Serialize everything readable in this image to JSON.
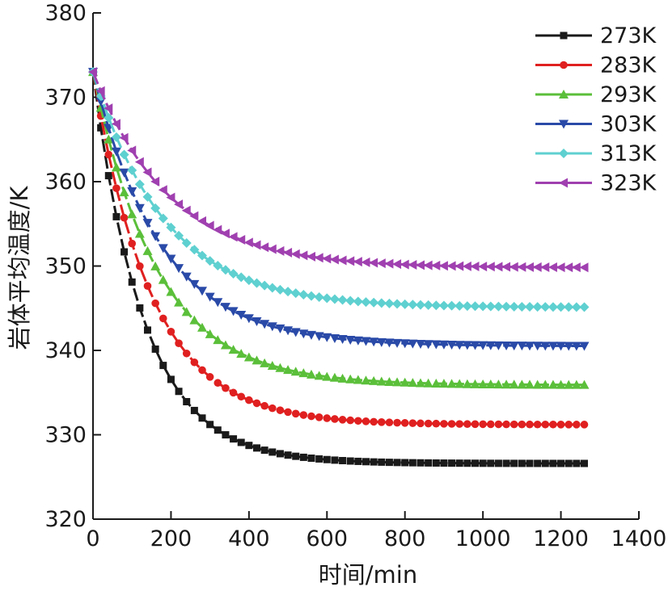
{
  "chart_data": {
    "type": "line",
    "xlabel": "时间/min",
    "ylabel": "岩体平均温度/K",
    "xlim": [
      0,
      1400
    ],
    "ylim": [
      320,
      380
    ],
    "xticks": [
      "0",
      "200",
      "400",
      "600",
      "800",
      "1000",
      "1200",
      "1400"
    ],
    "yticks": [
      "320",
      "330",
      "340",
      "350",
      "360",
      "370",
      "380"
    ],
    "grid": false,
    "legend_position": "top-right",
    "x": [
      0,
      20,
      40,
      60,
      80,
      100,
      120,
      140,
      160,
      180,
      200,
      220,
      240,
      260,
      280,
      300,
      320,
      340,
      360,
      380,
      400,
      420,
      440,
      460,
      480,
      500,
      520,
      540,
      560,
      580,
      600,
      620,
      640,
      660,
      680,
      700,
      720,
      740,
      760,
      780,
      800,
      820,
      840,
      860,
      880,
      900,
      920,
      940,
      960,
      980,
      1000,
      1020,
      1040,
      1060,
      1080,
      1100,
      1120,
      1140,
      1160,
      1180,
      1200,
      1220,
      1240,
      1260
    ],
    "series": [
      {
        "name": "273K",
        "color": "#1a1a1a",
        "marker": "square",
        "start": 373,
        "end": 326.6,
        "tau": 130
      },
      {
        "name": "283K",
        "color": "#e02020",
        "marker": "circle",
        "start": 373,
        "end": 331.2,
        "tau": 150
      },
      {
        "name": "293K",
        "color": "#5bbf3a",
        "marker": "triangle-up",
        "start": 373,
        "end": 335.9,
        "tau": 165
      },
      {
        "name": "303K",
        "color": "#2a4aa8",
        "marker": "triangle-down",
        "start": 373,
        "end": 340.5,
        "tau": 175
      },
      {
        "name": "313K",
        "color": "#5fd0d0",
        "marker": "diamond",
        "start": 373,
        "end": 345.1,
        "tau": 185
      },
      {
        "name": "323K",
        "color": "#a040b0",
        "marker": "triangle-left",
        "start": 373,
        "end": 349.8,
        "tau": 195
      }
    ]
  }
}
